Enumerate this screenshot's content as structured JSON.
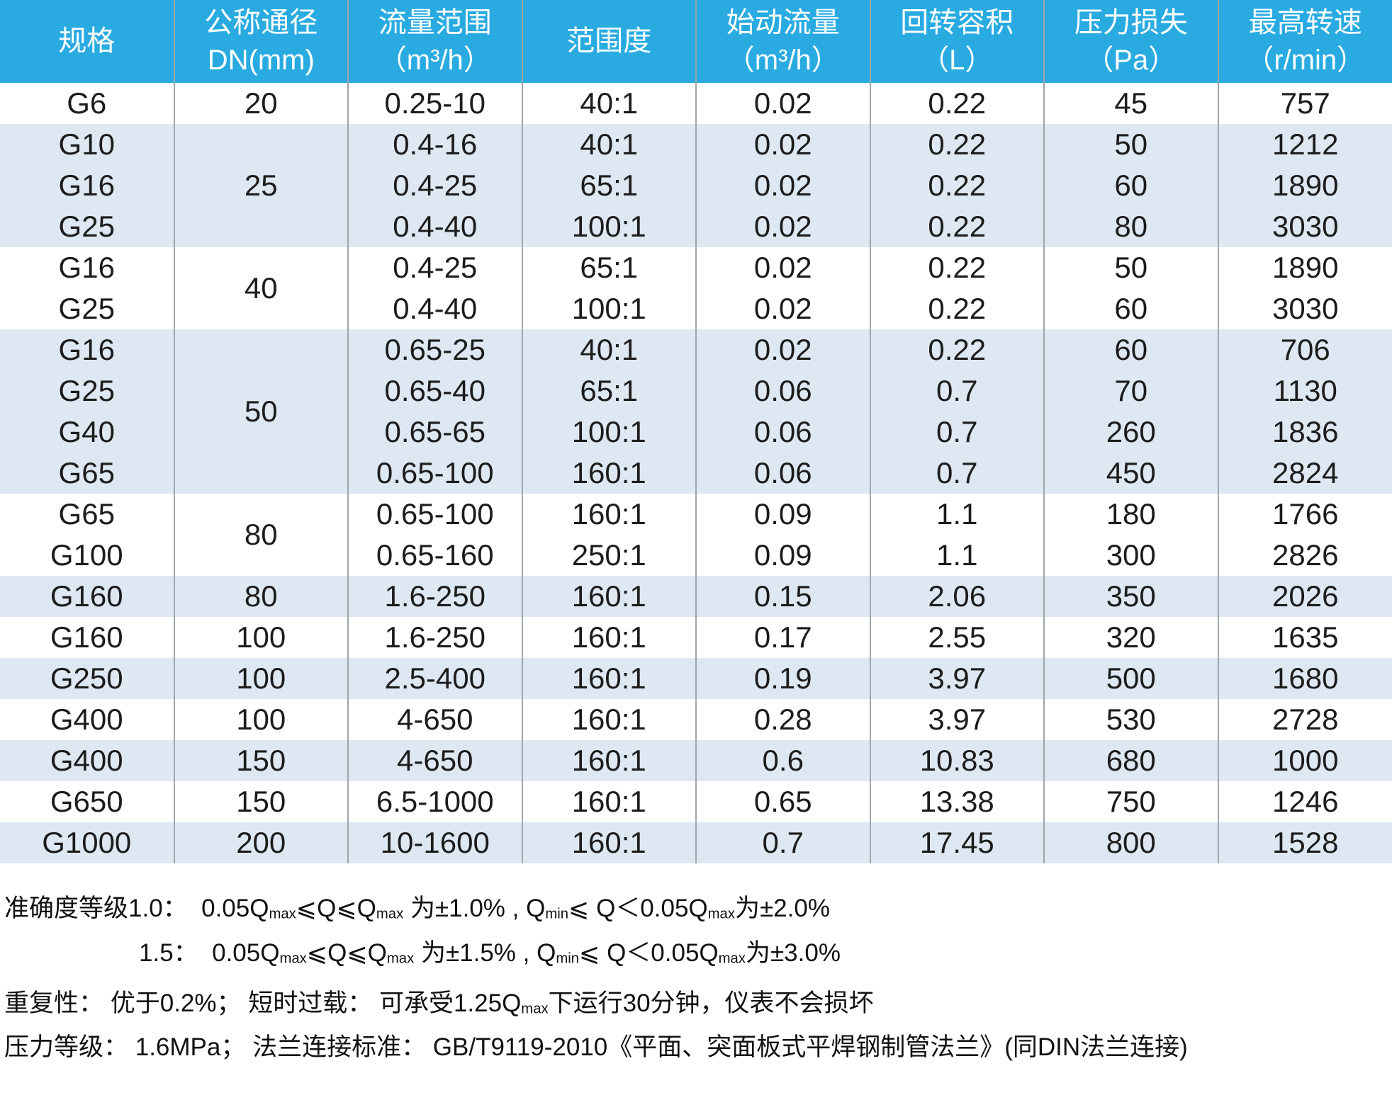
{
  "colors": {
    "header_bg": "#29abe2",
    "header_text": "#ffffff",
    "row_bg": "#ffffff",
    "row_alt_bg": "#dde8f2",
    "grid_line": "#9fa6ac",
    "body_text": "#1c1c1c"
  },
  "table": {
    "columns": [
      {
        "key": "spec",
        "label": "规格",
        "unit": ""
      },
      {
        "key": "dn",
        "label": "公称通径",
        "unit": "DN(mm)"
      },
      {
        "key": "flow_range",
        "label": "流量范围",
        "unit": "（m³/h）"
      },
      {
        "key": "rangeability",
        "label": "范围度",
        "unit": ""
      },
      {
        "key": "start_flow",
        "label": "始动流量",
        "unit": "（m³/h）"
      },
      {
        "key": "rotary_volume",
        "label": "回转容积",
        "unit": "（L）"
      },
      {
        "key": "pressure_loss",
        "label": "压力损失",
        "unit": "（Pa）"
      },
      {
        "key": "max_speed",
        "label": "最高转速",
        "unit": "（r/min）"
      }
    ],
    "rows": [
      {
        "spec": "G6",
        "dn": "20",
        "dn_rowspan": 1,
        "flow_range": "0.25-10",
        "rangeability": "40:1",
        "start_flow": "0.02",
        "rotary_volume": "0.22",
        "pressure_loss": "45",
        "max_speed": "757",
        "shade": false
      },
      {
        "spec": "G10",
        "dn": "25",
        "dn_rowspan": 3,
        "flow_range": "0.4-16",
        "rangeability": "40:1",
        "start_flow": "0.02",
        "rotary_volume": "0.22",
        "pressure_loss": "50",
        "max_speed": "1212",
        "shade": true
      },
      {
        "spec": "G16",
        "flow_range": "0.4-25",
        "rangeability": "65:1",
        "start_flow": "0.02",
        "rotary_volume": "0.22",
        "pressure_loss": "60",
        "max_speed": "1890",
        "shade": true
      },
      {
        "spec": "G25",
        "flow_range": "0.4-40",
        "rangeability": "100:1",
        "start_flow": "0.02",
        "rotary_volume": "0.22",
        "pressure_loss": "80",
        "max_speed": "3030",
        "shade": true
      },
      {
        "spec": "G16",
        "dn": "40",
        "dn_rowspan": 2,
        "flow_range": "0.4-25",
        "rangeability": "65:1",
        "start_flow": "0.02",
        "rotary_volume": "0.22",
        "pressure_loss": "50",
        "max_speed": "1890",
        "shade": false
      },
      {
        "spec": "G25",
        "flow_range": "0.4-40",
        "rangeability": "100:1",
        "start_flow": "0.02",
        "rotary_volume": "0.22",
        "pressure_loss": "60",
        "max_speed": "3030",
        "shade": false
      },
      {
        "spec": "G16",
        "dn": "50",
        "dn_rowspan": 4,
        "flow_range": "0.65-25",
        "rangeability": "40:1",
        "start_flow": "0.02",
        "rotary_volume": "0.22",
        "pressure_loss": "60",
        "max_speed": "706",
        "shade": true
      },
      {
        "spec": "G25",
        "flow_range": "0.65-40",
        "rangeability": "65:1",
        "start_flow": "0.06",
        "rotary_volume": "0.7",
        "pressure_loss": "70",
        "max_speed": "1130",
        "shade": true
      },
      {
        "spec": "G40",
        "flow_range": "0.65-65",
        "rangeability": "100:1",
        "start_flow": "0.06",
        "rotary_volume": "0.7",
        "pressure_loss": "260",
        "max_speed": "1836",
        "shade": true
      },
      {
        "spec": "G65",
        "flow_range": "0.65-100",
        "rangeability": "160:1",
        "start_flow": "0.06",
        "rotary_volume": "0.7",
        "pressure_loss": "450",
        "max_speed": "2824",
        "shade": true
      },
      {
        "spec": "G65",
        "dn": "80",
        "dn_rowspan": 2,
        "flow_range": "0.65-100",
        "rangeability": "160:1",
        "start_flow": "0.09",
        "rotary_volume": "1.1",
        "pressure_loss": "180",
        "max_speed": "1766",
        "shade": false
      },
      {
        "spec": "G100",
        "flow_range": "0.65-160",
        "rangeability": "250:1",
        "start_flow": "0.09",
        "rotary_volume": "1.1",
        "pressure_loss": "300",
        "max_speed": "2826",
        "shade": false
      },
      {
        "spec": "G160",
        "dn": "80",
        "dn_rowspan": 1,
        "flow_range": "1.6-250",
        "rangeability": "160:1",
        "start_flow": "0.15",
        "rotary_volume": "2.06",
        "pressure_loss": "350",
        "max_speed": "2026",
        "shade": true
      },
      {
        "spec": "G160",
        "dn": "100",
        "dn_rowspan": 1,
        "flow_range": "1.6-250",
        "rangeability": "160:1",
        "start_flow": "0.17",
        "rotary_volume": "2.55",
        "pressure_loss": "320",
        "max_speed": "1635",
        "shade": false
      },
      {
        "spec": "G250",
        "dn": "100",
        "dn_rowspan": 1,
        "flow_range": "2.5-400",
        "rangeability": "160:1",
        "start_flow": "0.19",
        "rotary_volume": "3.97",
        "pressure_loss": "500",
        "max_speed": "1680",
        "shade": true
      },
      {
        "spec": "G400",
        "dn": "100",
        "dn_rowspan": 1,
        "flow_range": "4-650",
        "rangeability": "160:1",
        "start_flow": "0.28",
        "rotary_volume": "3.97",
        "pressure_loss": "530",
        "max_speed": "2728",
        "shade": false
      },
      {
        "spec": "G400",
        "dn": "150",
        "dn_rowspan": 1,
        "flow_range": "4-650",
        "rangeability": "160:1",
        "start_flow": "0.6",
        "rotary_volume": "10.83",
        "pressure_loss": "680",
        "max_speed": "1000",
        "shade": true
      },
      {
        "spec": "G650",
        "dn": "150",
        "dn_rowspan": 1,
        "flow_range": "6.5-1000",
        "rangeability": "160:1",
        "start_flow": "0.65",
        "rotary_volume": "13.38",
        "pressure_loss": "750",
        "max_speed": "1246",
        "shade": false
      },
      {
        "spec": "G1000",
        "dn": "200",
        "dn_rowspan": 1,
        "flow_range": "10-1600",
        "rangeability": "160:1",
        "start_flow": "0.7",
        "rotary_volume": "17.45",
        "pressure_loss": "800",
        "max_speed": "1528",
        "shade": true
      }
    ]
  },
  "footer": {
    "lines": [
      {
        "indent": false,
        "gap_after": false,
        "segments": [
          {
            "text": "准确度等级1.0：  0.05Q"
          },
          {
            "text": "max",
            "sub": true
          },
          {
            "text": "⩽Q⩽Q"
          },
          {
            "text": "max",
            "sub": true
          },
          {
            "text": " 为±1.0% , Q"
          },
          {
            "text": "min",
            "sub": true
          },
          {
            "text": "⩽ Q＜0.05Q"
          },
          {
            "text": "max",
            "sub": true
          },
          {
            "text": "为±2.0%"
          }
        ]
      },
      {
        "indent": true,
        "gap_after": true,
        "segments": [
          {
            "text": "1.5：  0.05Q"
          },
          {
            "text": "max",
            "sub": true
          },
          {
            "text": "⩽Q⩽Q"
          },
          {
            "text": "max",
            "sub": true
          },
          {
            "text": " 为±1.5% , Q"
          },
          {
            "text": "min",
            "sub": true
          },
          {
            "text": "⩽ Q＜0.05Q"
          },
          {
            "text": "max",
            "sub": true
          },
          {
            "text": "为±3.0%"
          }
        ]
      },
      {
        "indent": false,
        "gap_after": false,
        "segments": [
          {
            "text": "重复性： 优于0.2%； 短时过载： 可承受1.25Q"
          },
          {
            "text": "max",
            "sub": true
          },
          {
            "text": "下运行30分钟，仪表不会损坏"
          }
        ]
      },
      {
        "indent": false,
        "gap_after": false,
        "segments": [
          {
            "text": "压力等级： 1.6MPa； 法兰连接标准： GB/T9119-2010《平面、突面板式平焊钢制管法兰》(同DIN法兰连接)"
          }
        ]
      }
    ]
  }
}
